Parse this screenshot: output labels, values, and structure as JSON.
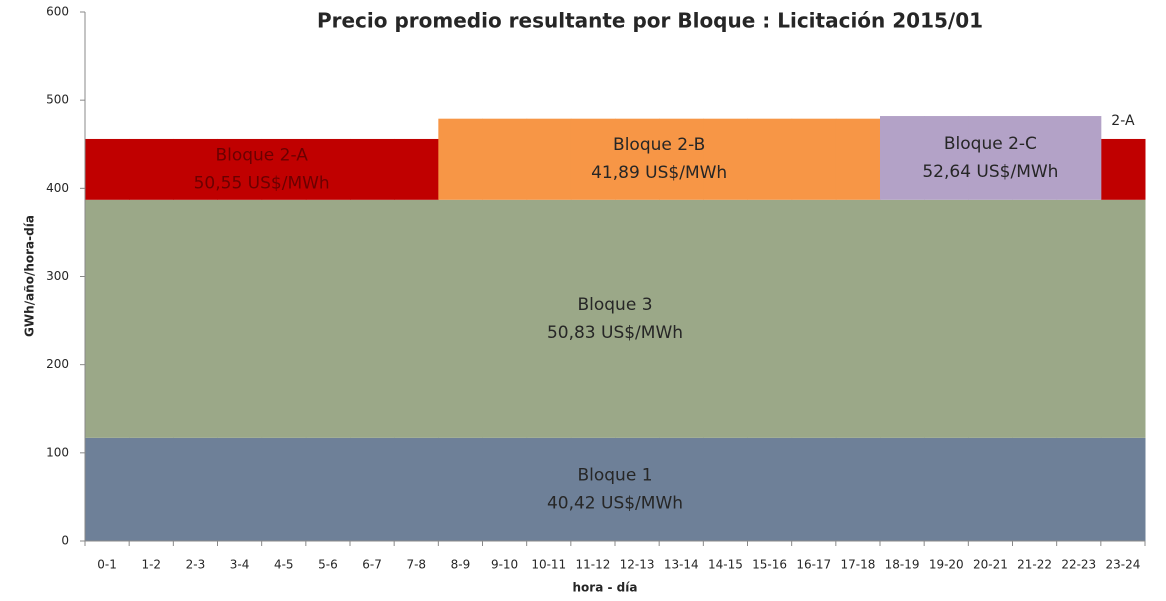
{
  "chart_data": {
    "type": "stacked_bar",
    "title": "Precio promedio resultante por Bloque : Licitación 2015/01",
    "x_label": "hora - día",
    "y_label": "GWh/año/hora-día",
    "categories": [
      "0-1",
      "1-2",
      "2-3",
      "3-4",
      "4-5",
      "5-6",
      "6-7",
      "7-8",
      "8-9",
      "9-10",
      "10-11",
      "11-12",
      "12-13",
      "13-14",
      "14-15",
      "15-16",
      "16-17",
      "17-18",
      "18-19",
      "19-20",
      "20-21",
      "21-22",
      "22-23",
      "23-24"
    ],
    "series": [
      {
        "name": "Bloque 1",
        "price": "40,42 US$/MWh",
        "color": "#6e8098",
        "text_color": "#262626",
        "values": [
          117,
          117,
          117,
          117,
          117,
          117,
          117,
          117,
          117,
          117,
          117,
          117,
          117,
          117,
          117,
          117,
          117,
          117,
          117,
          117,
          117,
          117,
          117,
          117
        ]
      },
      {
        "name": "Bloque 3",
        "price": "50,83 US$/MWh",
        "color": "#9ba888",
        "text_color": "#262626",
        "values": [
          270,
          270,
          270,
          270,
          270,
          270,
          270,
          270,
          270,
          270,
          270,
          270,
          270,
          270,
          270,
          270,
          270,
          270,
          270,
          270,
          270,
          270,
          270,
          270
        ]
      },
      {
        "name": "Bloque 2-A",
        "short_name": "2-A",
        "price": "50,55 US$/MWh",
        "color": "#c00000",
        "text_color": "#6b0000",
        "values": [
          69,
          69,
          69,
          69,
          69,
          69,
          69,
          69,
          null,
          null,
          null,
          null,
          null,
          null,
          null,
          null,
          null,
          null,
          null,
          null,
          null,
          null,
          null,
          69
        ]
      },
      {
        "name": "Bloque 2-B",
        "price": "41,89 US$/MWh",
        "color": "#f79646",
        "text_color": "#262626",
        "values": [
          null,
          null,
          null,
          null,
          null,
          null,
          null,
          null,
          92,
          92,
          92,
          92,
          92,
          92,
          92,
          92,
          92,
          92,
          null,
          null,
          null,
          null,
          null,
          null
        ]
      },
      {
        "name": "Bloque 2-C",
        "price": "52,64 US$/MWh",
        "color": "#b3a2c7",
        "text_color": "#262626",
        "values": [
          null,
          null,
          null,
          null,
          null,
          null,
          null,
          null,
          null,
          null,
          null,
          null,
          null,
          null,
          null,
          null,
          null,
          null,
          95,
          95,
          95,
          95,
          95,
          null
        ]
      }
    ],
    "ylim": [
      0,
      600
    ],
    "yticks": [
      0,
      100,
      200,
      300,
      400,
      500,
      600
    ],
    "grid": false
  }
}
